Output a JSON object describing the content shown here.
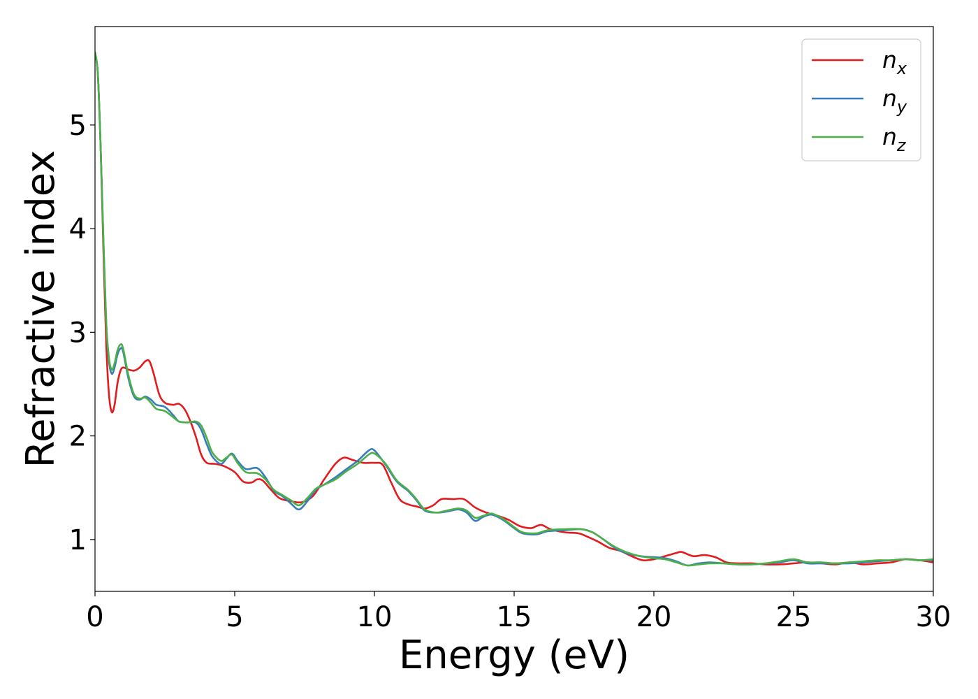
{
  "chart_data": {
    "type": "line",
    "title": "",
    "xlabel": "Energy (eV)",
    "ylabel": "Refractive index",
    "xlim": [
      0,
      30
    ],
    "ylim": [
      0.5,
      5.95
    ],
    "x_ticks": [
      "0",
      "5",
      "10",
      "15",
      "20",
      "25",
      "30"
    ],
    "y_ticks": [
      "1",
      "2",
      "3",
      "4",
      "5"
    ],
    "grid": false,
    "legend_position": "top-right",
    "series": [
      {
        "name": "n",
        "subscript": "x",
        "color": "#e41a1c",
        "points": [
          [
            0,
            5.7
          ],
          [
            0.1,
            5.5
          ],
          [
            0.2,
            4.8
          ],
          [
            0.3,
            3.8
          ],
          [
            0.4,
            2.9
          ],
          [
            0.5,
            2.4
          ],
          [
            0.6,
            2.23
          ],
          [
            0.7,
            2.3
          ],
          [
            0.8,
            2.5
          ],
          [
            0.9,
            2.62
          ],
          [
            1.0,
            2.66
          ],
          [
            1.2,
            2.64
          ],
          [
            1.4,
            2.63
          ],
          [
            1.6,
            2.66
          ],
          [
            1.8,
            2.72
          ],
          [
            1.95,
            2.72
          ],
          [
            2.1,
            2.6
          ],
          [
            2.3,
            2.4
          ],
          [
            2.5,
            2.32
          ],
          [
            2.8,
            2.3
          ],
          [
            3.0,
            2.31
          ],
          [
            3.2,
            2.26
          ],
          [
            3.4,
            2.15
          ],
          [
            3.6,
            2.0
          ],
          [
            3.8,
            1.82
          ],
          [
            4.0,
            1.74
          ],
          [
            4.3,
            1.73
          ],
          [
            4.6,
            1.71
          ],
          [
            5.0,
            1.65
          ],
          [
            5.3,
            1.56
          ],
          [
            5.6,
            1.55
          ],
          [
            5.8,
            1.58
          ],
          [
            6.0,
            1.57
          ],
          [
            6.3,
            1.48
          ],
          [
            6.6,
            1.4
          ],
          [
            7.0,
            1.37
          ],
          [
            7.4,
            1.36
          ],
          [
            7.8,
            1.42
          ],
          [
            8.2,
            1.58
          ],
          [
            8.6,
            1.73
          ],
          [
            8.9,
            1.79
          ],
          [
            9.2,
            1.77
          ],
          [
            9.6,
            1.74
          ],
          [
            10.0,
            1.74
          ],
          [
            10.3,
            1.72
          ],
          [
            10.6,
            1.55
          ],
          [
            10.9,
            1.39
          ],
          [
            11.2,
            1.34
          ],
          [
            11.5,
            1.32
          ],
          [
            11.8,
            1.3
          ],
          [
            12.1,
            1.33
          ],
          [
            12.4,
            1.39
          ],
          [
            12.8,
            1.39
          ],
          [
            13.2,
            1.39
          ],
          [
            13.6,
            1.31
          ],
          [
            14.0,
            1.26
          ],
          [
            14.4,
            1.23
          ],
          [
            14.8,
            1.19
          ],
          [
            15.2,
            1.13
          ],
          [
            15.6,
            1.11
          ],
          [
            15.8,
            1.13
          ],
          [
            16.0,
            1.14
          ],
          [
            16.3,
            1.1
          ],
          [
            16.8,
            1.07
          ],
          [
            17.3,
            1.06
          ],
          [
            17.6,
            1.03
          ],
          [
            18.0,
            0.98
          ],
          [
            18.4,
            0.92
          ],
          [
            18.8,
            0.89
          ],
          [
            19.2,
            0.84
          ],
          [
            19.6,
            0.8
          ],
          [
            20.0,
            0.81
          ],
          [
            20.4,
            0.84
          ],
          [
            20.8,
            0.87
          ],
          [
            21.0,
            0.88
          ],
          [
            21.4,
            0.84
          ],
          [
            21.8,
            0.85
          ],
          [
            22.2,
            0.83
          ],
          [
            22.6,
            0.78
          ],
          [
            23.0,
            0.77
          ],
          [
            23.5,
            0.77
          ],
          [
            24.0,
            0.76
          ],
          [
            24.5,
            0.76
          ],
          [
            25.0,
            0.77
          ],
          [
            25.5,
            0.78
          ],
          [
            26.0,
            0.77
          ],
          [
            26.5,
            0.76
          ],
          [
            27.0,
            0.78
          ],
          [
            27.5,
            0.76
          ],
          [
            28.0,
            0.77
          ],
          [
            28.5,
            0.78
          ],
          [
            29.0,
            0.81
          ],
          [
            29.5,
            0.8
          ],
          [
            30.0,
            0.78
          ]
        ]
      },
      {
        "name": "n",
        "subscript": "y",
        "color": "#377eb8",
        "points": [
          [
            0,
            5.7
          ],
          [
            0.1,
            5.5
          ],
          [
            0.2,
            4.8
          ],
          [
            0.3,
            3.9
          ],
          [
            0.4,
            3.1
          ],
          [
            0.5,
            2.72
          ],
          [
            0.6,
            2.6
          ],
          [
            0.7,
            2.66
          ],
          [
            0.8,
            2.78
          ],
          [
            0.9,
            2.84
          ],
          [
            1.0,
            2.82
          ],
          [
            1.2,
            2.55
          ],
          [
            1.4,
            2.38
          ],
          [
            1.6,
            2.35
          ],
          [
            1.8,
            2.38
          ],
          [
            2.0,
            2.35
          ],
          [
            2.2,
            2.3
          ],
          [
            2.5,
            2.28
          ],
          [
            2.8,
            2.2
          ],
          [
            3.0,
            2.14
          ],
          [
            3.3,
            2.13
          ],
          [
            3.6,
            2.13
          ],
          [
            3.8,
            2.06
          ],
          [
            4.0,
            1.92
          ],
          [
            4.2,
            1.8
          ],
          [
            4.5,
            1.73
          ],
          [
            4.7,
            1.78
          ],
          [
            4.9,
            1.83
          ],
          [
            5.1,
            1.76
          ],
          [
            5.4,
            1.68
          ],
          [
            5.8,
            1.69
          ],
          [
            6.1,
            1.6
          ],
          [
            6.4,
            1.47
          ],
          [
            6.7,
            1.42
          ],
          [
            7.0,
            1.35
          ],
          [
            7.3,
            1.29
          ],
          [
            7.6,
            1.37
          ],
          [
            7.9,
            1.48
          ],
          [
            8.2,
            1.53
          ],
          [
            8.6,
            1.6
          ],
          [
            9.0,
            1.68
          ],
          [
            9.4,
            1.76
          ],
          [
            9.8,
            1.86
          ],
          [
            10.0,
            1.86
          ],
          [
            10.4,
            1.72
          ],
          [
            10.8,
            1.56
          ],
          [
            11.2,
            1.47
          ],
          [
            11.5,
            1.38
          ],
          [
            11.8,
            1.28
          ],
          [
            12.2,
            1.26
          ],
          [
            12.6,
            1.27
          ],
          [
            13.0,
            1.29
          ],
          [
            13.3,
            1.26
          ],
          [
            13.6,
            1.18
          ],
          [
            13.9,
            1.22
          ],
          [
            14.2,
            1.24
          ],
          [
            14.6,
            1.19
          ],
          [
            15.0,
            1.11
          ],
          [
            15.3,
            1.06
          ],
          [
            15.8,
            1.05
          ],
          [
            16.2,
            1.08
          ],
          [
            16.8,
            1.09
          ],
          [
            17.4,
            1.1
          ],
          [
            17.8,
            1.07
          ],
          [
            18.2,
            1.0
          ],
          [
            18.6,
            0.92
          ],
          [
            19.0,
            0.87
          ],
          [
            19.5,
            0.84
          ],
          [
            20.0,
            0.83
          ],
          [
            20.4,
            0.82
          ],
          [
            20.8,
            0.79
          ],
          [
            21.2,
            0.75
          ],
          [
            21.6,
            0.77
          ],
          [
            22.0,
            0.78
          ],
          [
            22.5,
            0.77
          ],
          [
            23.0,
            0.76
          ],
          [
            23.5,
            0.76
          ],
          [
            24.0,
            0.77
          ],
          [
            24.5,
            0.78
          ],
          [
            25.0,
            0.8
          ],
          [
            25.5,
            0.77
          ],
          [
            26.0,
            0.77
          ],
          [
            26.5,
            0.77
          ],
          [
            27.0,
            0.77
          ],
          [
            27.5,
            0.78
          ],
          [
            28.0,
            0.79
          ],
          [
            28.5,
            0.8
          ],
          [
            29.0,
            0.81
          ],
          [
            29.5,
            0.8
          ],
          [
            30.0,
            0.8
          ]
        ]
      },
      {
        "name": "n",
        "subscript": "z",
        "color": "#4daf4a",
        "points": [
          [
            0,
            5.7
          ],
          [
            0.1,
            5.5
          ],
          [
            0.2,
            4.8
          ],
          [
            0.3,
            3.9
          ],
          [
            0.4,
            3.1
          ],
          [
            0.5,
            2.75
          ],
          [
            0.6,
            2.64
          ],
          [
            0.7,
            2.7
          ],
          [
            0.8,
            2.82
          ],
          [
            0.9,
            2.88
          ],
          [
            1.0,
            2.85
          ],
          [
            1.2,
            2.58
          ],
          [
            1.4,
            2.4
          ],
          [
            1.6,
            2.36
          ],
          [
            1.8,
            2.37
          ],
          [
            2.0,
            2.32
          ],
          [
            2.2,
            2.26
          ],
          [
            2.5,
            2.24
          ],
          [
            2.8,
            2.18
          ],
          [
            3.0,
            2.14
          ],
          [
            3.3,
            2.13
          ],
          [
            3.6,
            2.14
          ],
          [
            3.8,
            2.1
          ],
          [
            4.0,
            1.98
          ],
          [
            4.2,
            1.84
          ],
          [
            4.5,
            1.76
          ],
          [
            4.7,
            1.79
          ],
          [
            4.9,
            1.82
          ],
          [
            5.1,
            1.74
          ],
          [
            5.4,
            1.65
          ],
          [
            5.8,
            1.64
          ],
          [
            6.1,
            1.58
          ],
          [
            6.4,
            1.48
          ],
          [
            6.7,
            1.43
          ],
          [
            7.0,
            1.38
          ],
          [
            7.3,
            1.33
          ],
          [
            7.6,
            1.4
          ],
          [
            7.9,
            1.49
          ],
          [
            8.2,
            1.53
          ],
          [
            8.6,
            1.58
          ],
          [
            9.0,
            1.66
          ],
          [
            9.4,
            1.73
          ],
          [
            9.8,
            1.82
          ],
          [
            10.0,
            1.83
          ],
          [
            10.4,
            1.73
          ],
          [
            10.8,
            1.57
          ],
          [
            11.2,
            1.48
          ],
          [
            11.5,
            1.39
          ],
          [
            11.8,
            1.29
          ],
          [
            12.2,
            1.26
          ],
          [
            12.6,
            1.28
          ],
          [
            13.0,
            1.3
          ],
          [
            13.3,
            1.28
          ],
          [
            13.6,
            1.21
          ],
          [
            13.9,
            1.23
          ],
          [
            14.2,
            1.25
          ],
          [
            14.6,
            1.2
          ],
          [
            15.0,
            1.12
          ],
          [
            15.3,
            1.07
          ],
          [
            15.8,
            1.06
          ],
          [
            16.2,
            1.09
          ],
          [
            16.8,
            1.1
          ],
          [
            17.4,
            1.1
          ],
          [
            17.8,
            1.07
          ],
          [
            18.2,
            1.0
          ],
          [
            18.6,
            0.93
          ],
          [
            19.0,
            0.88
          ],
          [
            19.5,
            0.84
          ],
          [
            20.0,
            0.82
          ],
          [
            20.4,
            0.81
          ],
          [
            20.8,
            0.78
          ],
          [
            21.2,
            0.75
          ],
          [
            21.6,
            0.76
          ],
          [
            22.0,
            0.77
          ],
          [
            22.5,
            0.77
          ],
          [
            23.0,
            0.76
          ],
          [
            23.5,
            0.76
          ],
          [
            24.0,
            0.77
          ],
          [
            24.5,
            0.79
          ],
          [
            25.0,
            0.81
          ],
          [
            25.5,
            0.78
          ],
          [
            26.0,
            0.78
          ],
          [
            26.5,
            0.77
          ],
          [
            27.0,
            0.78
          ],
          [
            27.5,
            0.79
          ],
          [
            28.0,
            0.8
          ],
          [
            28.5,
            0.8
          ],
          [
            29.0,
            0.81
          ],
          [
            29.5,
            0.8
          ],
          [
            30.0,
            0.81
          ]
        ]
      }
    ]
  }
}
